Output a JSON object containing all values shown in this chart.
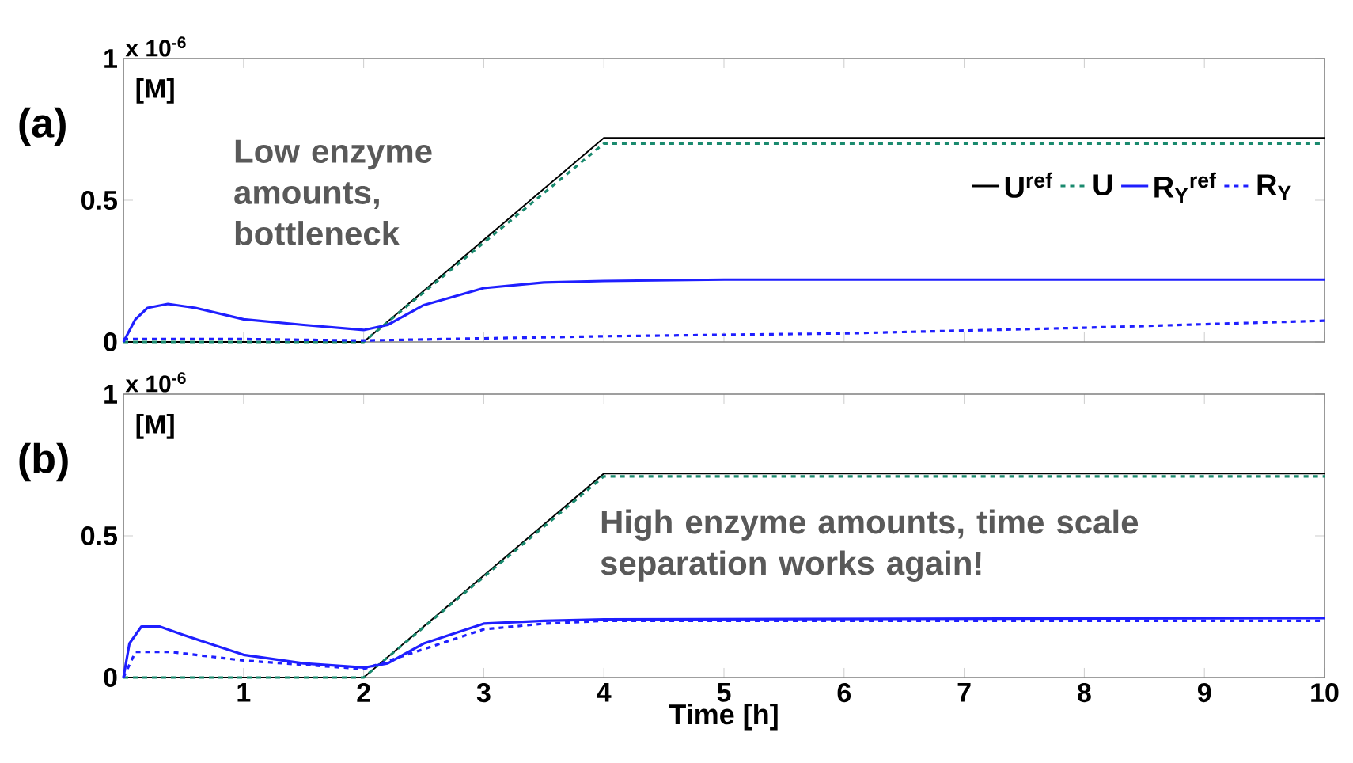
{
  "chart_data": [
    {
      "type": "line",
      "title": "(a)",
      "ylabel": "[M]",
      "annotations": [
        "x 10$^{-6}$",
        "Low enzyme amounts, bottleneck"
      ],
      "xlim": [
        0,
        10
      ],
      "ylim": [
        0,
        1
      ],
      "xticks": [
        1,
        2,
        3,
        4,
        5,
        6,
        7,
        8,
        9,
        10
      ],
      "yticks": [
        0,
        0.5,
        1
      ],
      "tick_labels": "y",
      "legend": "right",
      "grid": false,
      "series": [
        {
          "name": "U$^{ref}$",
          "color": "#000000",
          "line_style": "solid",
          "x": [
            0,
            2,
            4,
            10
          ],
          "values": [
            0,
            0,
            0.72,
            0.72
          ]
        },
        {
          "name": "U",
          "color": "#1a8a6e",
          "line_style": "dashed",
          "x": [
            0,
            2,
            4,
            10
          ],
          "values": [
            0,
            0,
            0.7,
            0.7
          ]
        },
        {
          "name": "R$_{Y}$$^{ref}$",
          "color": "#1f1fff",
          "line_style": "solid",
          "x": [
            0,
            0.1,
            0.2,
            0.37,
            0.6,
            1,
            1.5,
            2,
            2.2,
            2.5,
            3,
            3.5,
            4,
            5,
            10
          ],
          "values": [
            0,
            0.08,
            0.12,
            0.134,
            0.12,
            0.08,
            0.06,
            0.042,
            0.06,
            0.13,
            0.19,
            0.21,
            0.215,
            0.22,
            0.22
          ]
        },
        {
          "name": "R$_{Y}$",
          "color": "#1f1fff",
          "line_style": "dashed",
          "x": [
            0,
            1,
            2,
            4,
            6,
            8,
            10
          ],
          "values": [
            0.01,
            0.01,
            0.005,
            0.02,
            0.03,
            0.05,
            0.075
          ]
        }
      ]
    },
    {
      "type": "line",
      "title": "(b)",
      "ylabel": "[M]",
      "xlabel": "Time [h]",
      "annotations": [
        "x 10$^{-6}$",
        "High enzyme amounts, time scale separation works again!"
      ],
      "xlim": [
        0,
        10
      ],
      "ylim": [
        0,
        1
      ],
      "xticks": [
        1,
        2,
        3,
        4,
        5,
        6,
        7,
        8,
        9,
        10
      ],
      "yticks": [
        0,
        0.5,
        1
      ],
      "grid": false,
      "series": [
        {
          "color": "#000000",
          "line_style": "solid",
          "x": [
            0,
            2,
            4,
            10
          ],
          "values": [
            0,
            0,
            0.72,
            0.72
          ]
        },
        {
          "color": "#1a8a6e",
          "line_style": "dashed",
          "x": [
            0,
            2,
            4,
            10
          ],
          "values": [
            0,
            0,
            0.71,
            0.71
          ]
        },
        {
          "color": "#1f1fff",
          "line_style": "solid",
          "x": [
            0,
            0.05,
            0.15,
            0.3,
            0.5,
            1,
            1.5,
            2,
            2.2,
            2.5,
            3,
            3.5,
            4,
            10
          ],
          "values": [
            0,
            0.12,
            0.18,
            0.18,
            0.15,
            0.08,
            0.05,
            0.035,
            0.05,
            0.12,
            0.19,
            0.2,
            0.205,
            0.21
          ]
        },
        {
          "color": "#1f1fff",
          "line_style": "dashed",
          "x": [
            0,
            0.1,
            0.4,
            1,
            1.5,
            2,
            2.5,
            3,
            3.5,
            4,
            10
          ],
          "values": [
            0,
            0.09,
            0.09,
            0.06,
            0.045,
            0.03,
            0.1,
            0.17,
            0.19,
            0.2,
            0.2
          ]
        }
      ]
    }
  ]
}
